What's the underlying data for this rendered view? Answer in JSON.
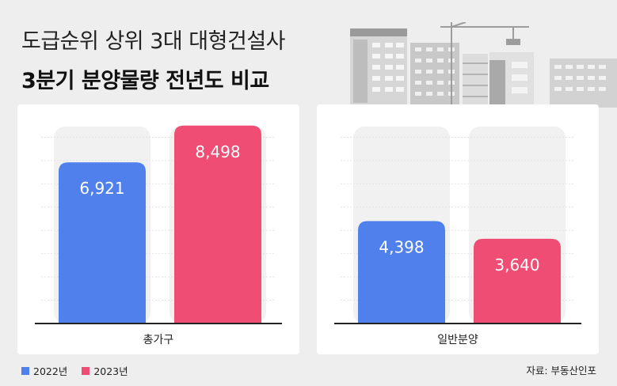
{
  "header": {
    "title_line1": "도급순위 상위 3대 대형건설사",
    "title_line2": "3분기 분양물량 전년도 비교"
  },
  "colors": {
    "series_2022": "#4f80ec",
    "series_2023": "#ef4d73",
    "track": "#f1f1f1",
    "grid": "#e3e3e3"
  },
  "chart_data": [
    {
      "type": "bar",
      "category": "총가구",
      "series": [
        {
          "name": "2022년",
          "value": 6921,
          "label": "6,921"
        },
        {
          "name": "2023년",
          "value": 8498,
          "label": "8,498"
        }
      ],
      "ylim": [
        0,
        9000
      ],
      "grid": true
    },
    {
      "type": "bar",
      "category": "일반분양",
      "series": [
        {
          "name": "2022년",
          "value": 4398,
          "label": "4,398"
        },
        {
          "name": "2023년",
          "value": 3640,
          "label": "3,640"
        }
      ],
      "ylim": [
        0,
        9000
      ],
      "grid": true
    }
  ],
  "legend": {
    "items": [
      {
        "label": "2022년",
        "color": "#4f80ec"
      },
      {
        "label": "2023년",
        "color": "#ef4d73"
      }
    ],
    "placement": "bottom-left"
  },
  "source": "자료: 부동산인포"
}
